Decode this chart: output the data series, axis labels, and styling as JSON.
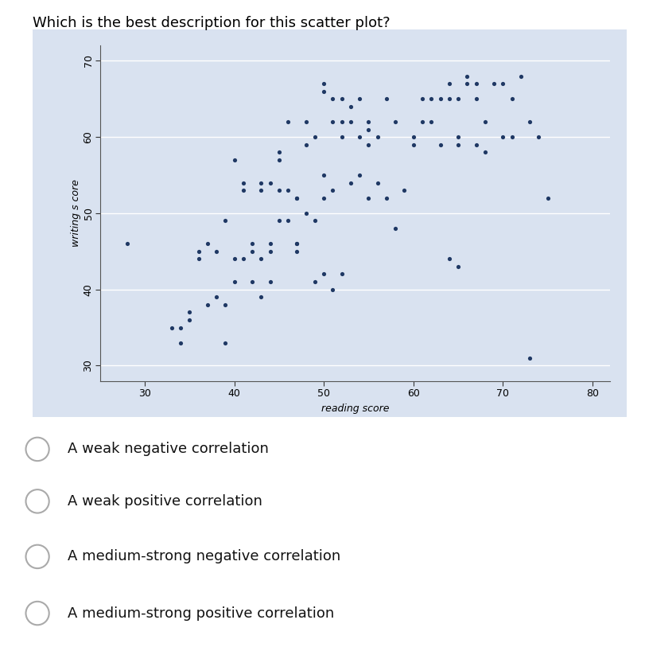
{
  "title": "Which is the best description for this scatter plot?",
  "xlabel": "reading score",
  "ylabel": "writing s core",
  "xlim": [
    25,
    82
  ],
  "ylim": [
    28,
    72
  ],
  "xticks": [
    30,
    40,
    50,
    60,
    70,
    80
  ],
  "yticks": [
    30,
    40,
    50,
    60,
    70
  ],
  "dot_color": "#1F3864",
  "bg_color": "#D9E2F0",
  "scatter_x": [
    28,
    33,
    34,
    34,
    35,
    35,
    36,
    36,
    37,
    37,
    38,
    38,
    39,
    39,
    39,
    40,
    40,
    40,
    41,
    41,
    41,
    42,
    42,
    42,
    43,
    43,
    43,
    43,
    44,
    44,
    44,
    44,
    45,
    45,
    45,
    45,
    46,
    46,
    46,
    47,
    47,
    47,
    47,
    47,
    48,
    48,
    48,
    49,
    49,
    49,
    50,
    50,
    50,
    50,
    50,
    51,
    51,
    51,
    51,
    52,
    52,
    52,
    52,
    53,
    53,
    53,
    54,
    54,
    54,
    55,
    55,
    55,
    55,
    56,
    56,
    57,
    57,
    58,
    58,
    59,
    60,
    60,
    61,
    61,
    62,
    62,
    63,
    63,
    64,
    64,
    64,
    65,
    65,
    65,
    65,
    66,
    66,
    67,
    67,
    67,
    68,
    68,
    69,
    70,
    70,
    71,
    71,
    72,
    73,
    73,
    74,
    75
  ],
  "scatter_y": [
    46,
    35,
    35,
    33,
    37,
    36,
    45,
    44,
    38,
    46,
    45,
    39,
    49,
    33,
    38,
    41,
    44,
    57,
    54,
    44,
    53,
    46,
    45,
    41,
    54,
    53,
    44,
    39,
    46,
    54,
    45,
    41,
    58,
    57,
    53,
    49,
    62,
    53,
    49,
    46,
    46,
    52,
    52,
    45,
    62,
    59,
    50,
    60,
    49,
    41,
    67,
    66,
    55,
    52,
    42,
    65,
    62,
    53,
    40,
    65,
    62,
    60,
    42,
    64,
    62,
    54,
    65,
    60,
    55,
    62,
    61,
    59,
    52,
    60,
    54,
    65,
    52,
    62,
    48,
    53,
    60,
    59,
    65,
    62,
    65,
    62,
    65,
    59,
    67,
    65,
    44,
    65,
    60,
    59,
    43,
    68,
    67,
    67,
    65,
    59,
    62,
    58,
    67,
    67,
    60,
    65,
    60,
    68,
    62,
    31,
    60,
    52
  ],
  "options": [
    "A weak negative correlation",
    "A weak positive correlation",
    "A medium-strong negative correlation",
    "A medium-strong positive correlation"
  ],
  "title_fontsize": 13,
  "label_fontsize": 9,
  "tick_fontsize": 9,
  "option_fontsize": 13
}
